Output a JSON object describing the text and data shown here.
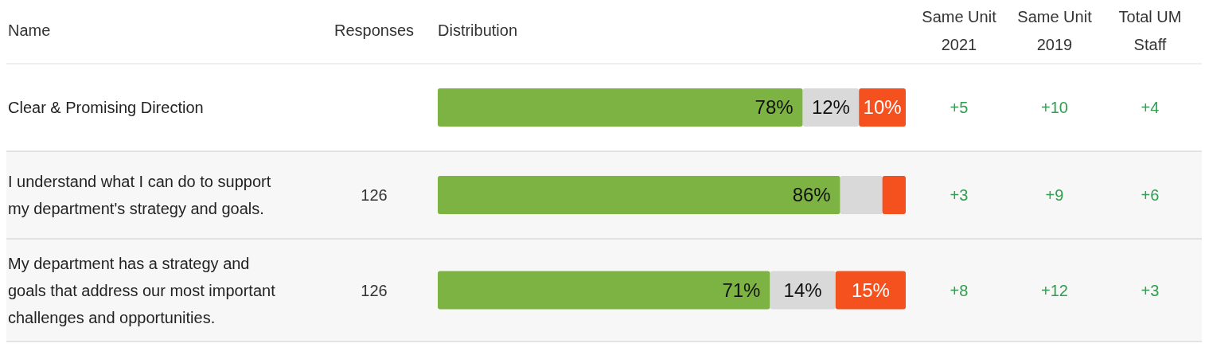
{
  "chart_data": {
    "type": "bar",
    "orientation": "horizontal",
    "stacked": true,
    "xlim": [
      0,
      100
    ],
    "tick_labels": "y",
    "categories": [
      "Clear & Promising Direction",
      "I understand what I can do to support my department's strategy and goals.",
      "My department has a strategy and goals that address our most important challenges and opportunities."
    ],
    "series": [
      {
        "color": "#7cb342",
        "values": [
          78,
          86,
          71
        ],
        "value_labels": [
          "78%",
          "86%",
          "71%"
        ]
      },
      {
        "color": "#d9d9d9",
        "values": [
          12,
          9,
          14
        ],
        "value_labels": [
          "12%",
          null,
          "14%"
        ]
      },
      {
        "color": "#f4511e",
        "values": [
          10,
          5,
          15
        ],
        "value_labels": [
          "10%",
          null,
          "15%"
        ]
      }
    ],
    "annotations": [
      "Name",
      "Responses",
      "Distribution",
      "Same Unit 2021",
      "Same Unit 2019",
      "Total UM Staff",
      "+5",
      "+10",
      "+4",
      "126",
      "+3",
      "+9",
      "+6",
      "126",
      "+8",
      "+12",
      "+3"
    ]
  }
}
